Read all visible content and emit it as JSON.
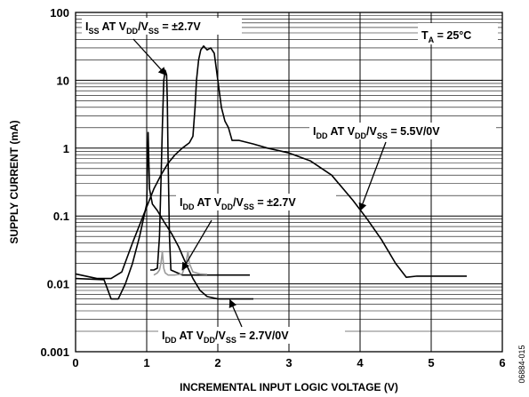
{
  "chart_data": {
    "type": "line",
    "xlabel": "INCREMENTAL INPUT LOGIC VOLTAGE (V)",
    "ylabel": "SUPPLY CURRENT (mA)",
    "xlim": [
      0,
      6
    ],
    "ylim": [
      0.001,
      100
    ],
    "yscale": "log",
    "grid": true,
    "x_ticks": [
      "0",
      "1",
      "2",
      "3",
      "4",
      "5",
      "6"
    ],
    "y_ticks": [
      "0.001",
      "0.01",
      "0.1",
      "1",
      "10",
      "100"
    ],
    "conditions_label": {
      "main": "T",
      "sub": "A",
      "rest": " = 25°C"
    },
    "figure_code": "06884-015",
    "series": [
      {
        "name": "IDD AT VDD/VSS = 5.5V/0V",
        "label": {
          "p1": "I",
          "s1": "DD",
          "p2": " AT V",
          "s2": "DD",
          "p3": "/V",
          "s3": "SS",
          "p4": " = 5.5V/0V"
        },
        "color": "#000000",
        "points": [
          [
            0,
            0.014
          ],
          [
            0.3,
            0.012
          ],
          [
            0.5,
            0.012
          ],
          [
            0.65,
            0.015
          ],
          [
            0.8,
            0.04
          ],
          [
            0.95,
            0.1
          ],
          [
            1.1,
            0.25
          ],
          [
            1.2,
            0.4
          ],
          [
            1.3,
            0.6
          ],
          [
            1.4,
            0.8
          ],
          [
            1.5,
            1.0
          ],
          [
            1.6,
            1.2
          ],
          [
            1.65,
            1.5
          ],
          [
            1.68,
            4
          ],
          [
            1.7,
            10
          ],
          [
            1.73,
            20
          ],
          [
            1.76,
            28
          ],
          [
            1.8,
            32
          ],
          [
            1.85,
            28
          ],
          [
            1.9,
            30
          ],
          [
            1.95,
            25
          ],
          [
            2.0,
            10
          ],
          [
            2.05,
            4
          ],
          [
            2.1,
            2.5
          ],
          [
            2.15,
            2
          ],
          [
            2.2,
            1.3
          ],
          [
            2.3,
            1.3
          ],
          [
            2.5,
            1.15
          ],
          [
            2.7,
            1.0
          ],
          [
            3.0,
            0.85
          ],
          [
            3.3,
            0.65
          ],
          [
            3.6,
            0.4
          ],
          [
            3.9,
            0.17
          ],
          [
            4.1,
            0.09
          ],
          [
            4.3,
            0.045
          ],
          [
            4.5,
            0.02
          ],
          [
            4.65,
            0.0125
          ],
          [
            4.8,
            0.013
          ],
          [
            5.0,
            0.013
          ],
          [
            5.5,
            0.013
          ]
        ]
      },
      {
        "name": "ISS AT VDD/VSS = ±2.7V",
        "label": {
          "p1": "I",
          "s1": "SS",
          "p2": " AT V",
          "s2": "DD",
          "p3": "/V",
          "s3": "SS",
          "p4": " = ±2.7V"
        },
        "color": "#000000",
        "points": [
          [
            1.05,
            0.016
          ],
          [
            1.1,
            0.016
          ],
          [
            1.15,
            0.017
          ],
          [
            1.18,
            0.05
          ],
          [
            1.2,
            0.3
          ],
          [
            1.22,
            2
          ],
          [
            1.24,
            10
          ],
          [
            1.26,
            14
          ],
          [
            1.28,
            12
          ],
          [
            1.29,
            5
          ],
          [
            1.3,
            0.8
          ],
          [
            1.32,
            0.05
          ],
          [
            1.34,
            0.016
          ],
          [
            1.5,
            0.0135
          ],
          [
            2.0,
            0.0135
          ],
          [
            2.45,
            0.0135
          ]
        ]
      },
      {
        "name": "IDD AT VDD/VSS = ±2.7V",
        "label": {
          "p1": "I",
          "s1": "DD",
          "p2": " AT V",
          "s2": "DD",
          "p3": "/V",
          "s3": "SS",
          "p4": " = ±2.7V"
        },
        "color": "#9a9a9a",
        "points": [
          [
            1.1,
            0.0135
          ],
          [
            1.15,
            0.0145
          ],
          [
            1.18,
            0.016
          ],
          [
            1.2,
            0.02
          ],
          [
            1.22,
            0.03
          ],
          [
            1.24,
            0.017
          ],
          [
            1.26,
            0.0145
          ],
          [
            1.3,
            0.0135
          ],
          [
            1.4,
            0.0135
          ],
          [
            1.5,
            0.014
          ],
          [
            1.55,
            0.02
          ],
          [
            1.58,
            0.03
          ],
          [
            1.6,
            0.02
          ],
          [
            1.65,
            0.015
          ],
          [
            1.75,
            0.014
          ],
          [
            1.85,
            0.0138
          ]
        ]
      },
      {
        "name": "IDD AT VDD/VSS = 2.7V/0V",
        "label": {
          "p1": "I",
          "s1": "DD",
          "p2": " AT V",
          "s2": "DD",
          "p3": "/V",
          "s3": "SS",
          "p4": " = 2.7V/0V"
        },
        "color": "#000000",
        "points": [
          [
            0,
            0.012
          ],
          [
            0.4,
            0.0115
          ],
          [
            0.5,
            0.006
          ],
          [
            0.6,
            0.006
          ],
          [
            0.7,
            0.01
          ],
          [
            0.8,
            0.02
          ],
          [
            0.9,
            0.05
          ],
          [
            1.0,
            0.15
          ],
          [
            1.02,
            1.7
          ],
          [
            1.04,
            0.25
          ],
          [
            1.08,
            0.15
          ],
          [
            1.15,
            0.12
          ],
          [
            1.25,
            0.08
          ],
          [
            1.35,
            0.055
          ],
          [
            1.45,
            0.035
          ],
          [
            1.55,
            0.02
          ],
          [
            1.65,
            0.012
          ],
          [
            1.75,
            0.008
          ],
          [
            1.85,
            0.0065
          ],
          [
            2.0,
            0.006
          ],
          [
            2.3,
            0.006
          ],
          [
            2.5,
            0.006
          ]
        ]
      }
    ]
  }
}
